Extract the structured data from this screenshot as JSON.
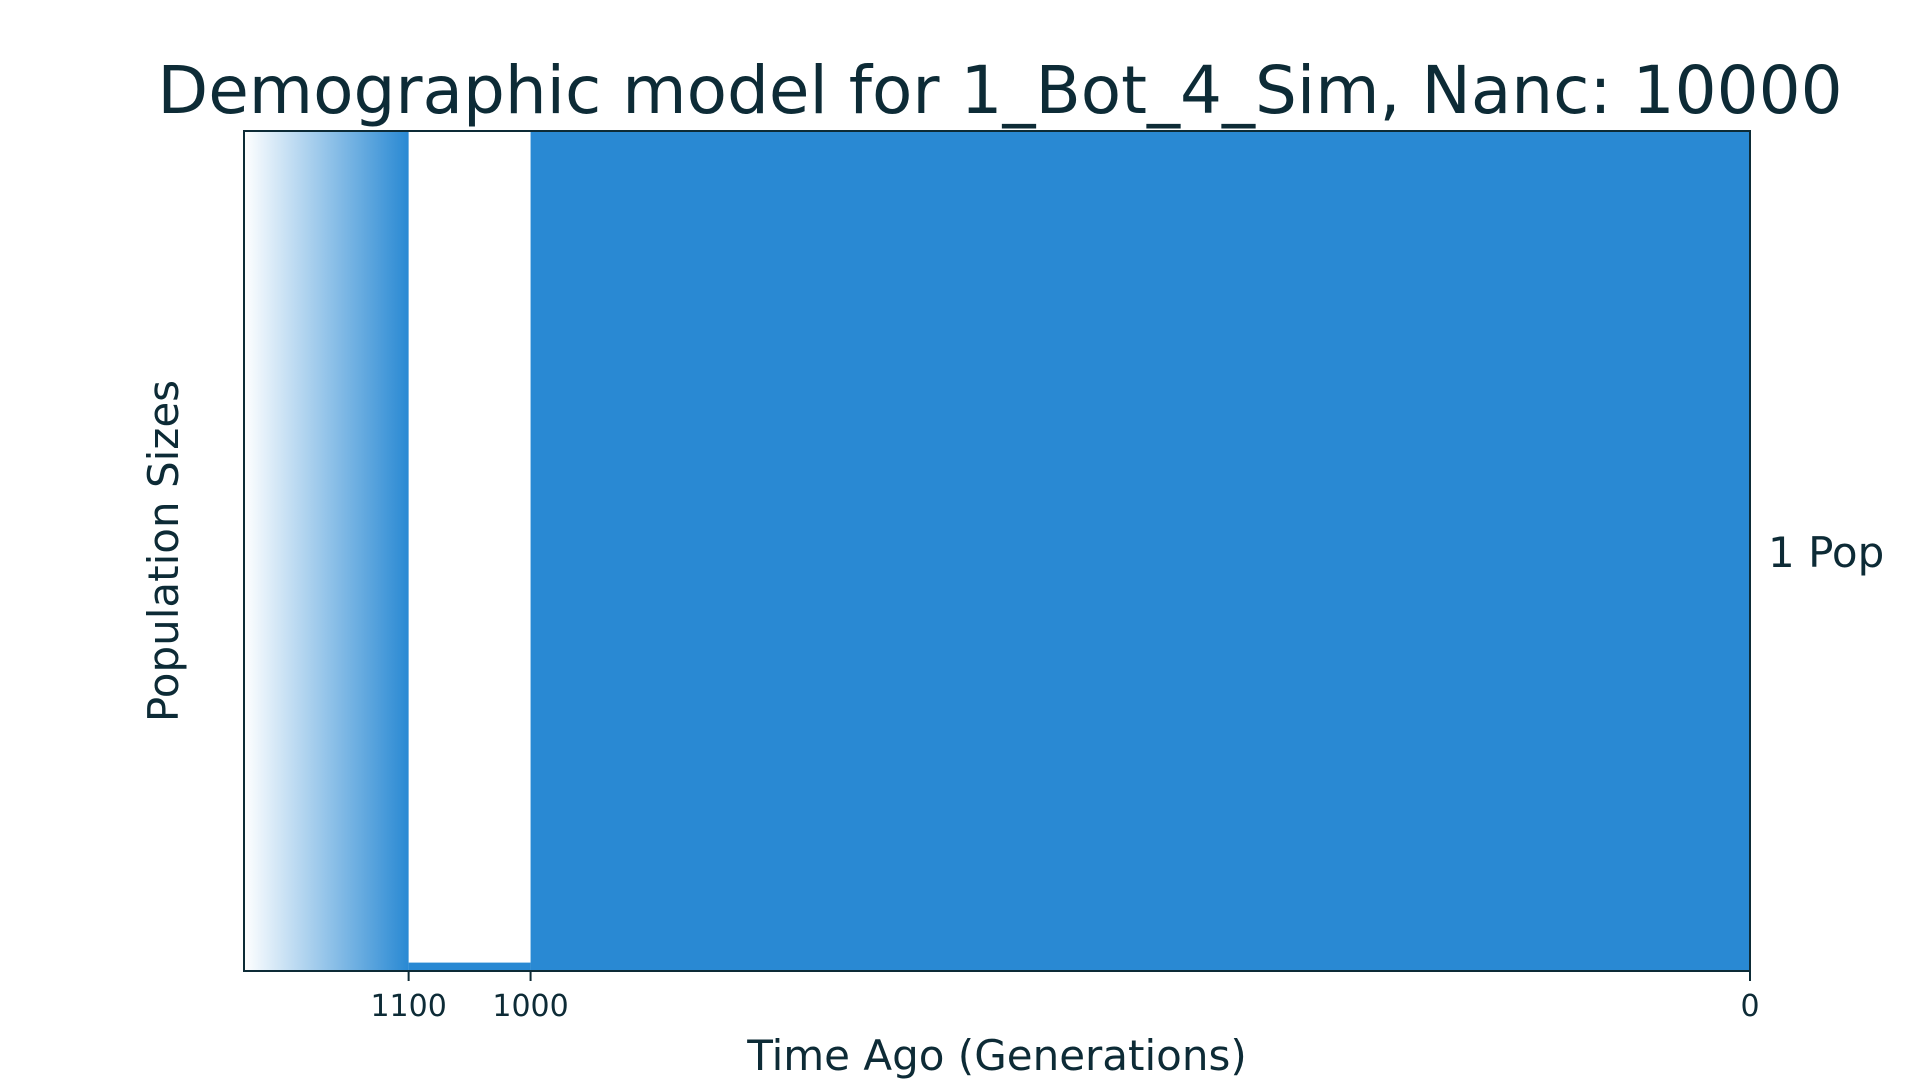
{
  "chart_data": {
    "type": "area",
    "title": "Demographic model for 1_Bot_4_Sim, Nanc: 10000",
    "xlabel": "Time Ago (Generations)",
    "ylabel": "Population Sizes",
    "population_label": "1 Pop",
    "x_axis_direction": "reversed",
    "xlim": [
      1235,
      0
    ],
    "x_ticks": [
      {
        "value": 1100,
        "label": "1100"
      },
      {
        "value": 1000,
        "label": "1000"
      },
      {
        "value": 0,
        "label": "0"
      }
    ],
    "ancestral_gradient": {
      "x_start": 1235,
      "x_end": 1100
    },
    "epochs": [
      {
        "start": 1100,
        "end": 1000,
        "relative_size": 0.01
      },
      {
        "start": 1000,
        "end": 0,
        "relative_size": 1.0
      }
    ],
    "y_scale_max": 1.0,
    "fill_color": "#2989d3",
    "gradient_start_color": "#ffffff",
    "text_color": "#0d2b36",
    "grid": false,
    "legend": "none"
  }
}
